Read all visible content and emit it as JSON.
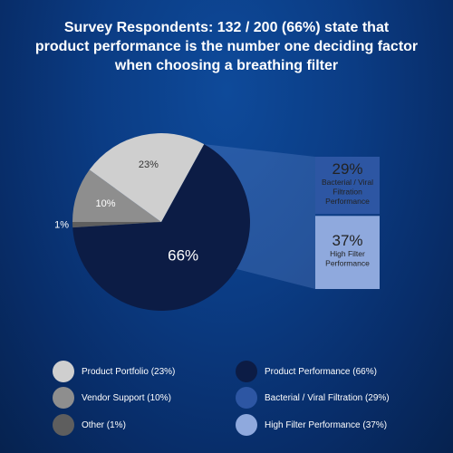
{
  "title": {
    "line1": "Survey Respondents: 132 / 200 (66%) state that",
    "line2": "product performance is the number one deciding factor",
    "line3": "when choosing a breathing filter"
  },
  "colors": {
    "background": "#0b3c84",
    "product_performance": "#0c1c45",
    "product_portfolio": "#cfcfcf",
    "vendor_support": "#8e8e8e",
    "other": "#5e5e5e",
    "bacterial_viral": "#2d56a3",
    "high_filter": "#8fa9dd"
  },
  "chart_data": [
    {
      "type": "pie",
      "slices": [
        {
          "name": "Product Performance",
          "value": 66,
          "label": "66%",
          "color": "#0c1c45"
        },
        {
          "name": "Other",
          "value": 1,
          "label": "1%",
          "color": "#5e5e5e"
        },
        {
          "name": "Vendor Support",
          "value": 10,
          "label": "10%",
          "color": "#8e8e8e"
        },
        {
          "name": "Product Portfolio",
          "value": 23,
          "label": "23%",
          "color": "#cfcfcf"
        }
      ]
    },
    {
      "type": "bar",
      "stacked": true,
      "breakdown_of": "Product Performance",
      "series": [
        {
          "name": "Bacterial / Viral Filtration Performance",
          "value": 29,
          "label": "29%",
          "lines": [
            "Bacterial / Viral",
            "Filtration",
            "Performance"
          ],
          "color": "#2d56a3"
        },
        {
          "name": "High Filter Performance",
          "value": 37,
          "label": "37%",
          "lines": [
            "High Filter",
            "Performance"
          ],
          "color": "#8fa9dd"
        }
      ]
    }
  ],
  "legend": [
    {
      "label": "Product Portfolio (23%)",
      "color": "#cfcfcf"
    },
    {
      "label": "Vendor Support (10%)",
      "color": "#8e8e8e"
    },
    {
      "label": "Other (1%)",
      "color": "#5e5e5e"
    },
    {
      "label": "Product Performance (66%)",
      "color": "#0c1c45"
    },
    {
      "label": "Bacterial / Viral Filtration (29%)",
      "color": "#2d56a3"
    },
    {
      "label": "High Filter Performance (37%)",
      "color": "#8fa9dd"
    }
  ]
}
